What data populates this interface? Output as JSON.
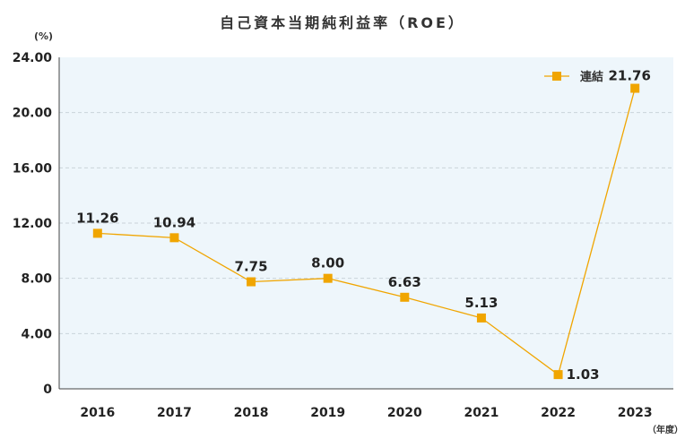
{
  "chart_data": {
    "type": "line",
    "title": "自己資本当期純利益率（ROE）",
    "y_unit": "(%)",
    "x_unit": "（年度）",
    "categories": [
      "2016",
      "2017",
      "2018",
      "2019",
      "2020",
      "2021",
      "2022",
      "2023"
    ],
    "series": [
      {
        "name": "連結",
        "values": [
          11.26,
          10.94,
          7.75,
          8.0,
          6.63,
          5.13,
          1.03,
          21.76
        ],
        "labels": [
          "11.26",
          "10.94",
          "7.75",
          "8.00",
          "6.63",
          "5.13",
          "1.03",
          "21.76"
        ],
        "color": "#f0a500"
      }
    ],
    "ylim": [
      0,
      24
    ],
    "yticks": [
      "0",
      "4.00",
      "8.00",
      "12.00",
      "16.00",
      "20.00",
      "24.00"
    ],
    "grid": true,
    "legend_position": "top-right",
    "colors": {
      "plot_background": "#eef6fb",
      "grid": "#c9d3da",
      "line": "#f0a500"
    }
  }
}
